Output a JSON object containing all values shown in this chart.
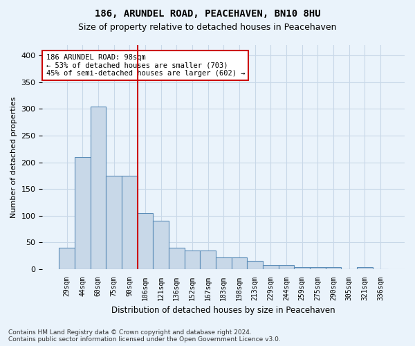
{
  "title": "186, ARUNDEL ROAD, PEACEHAVEN, BN10 8HU",
  "subtitle": "Size of property relative to detached houses in Peacehaven",
  "xlabel": "Distribution of detached houses by size in Peacehaven",
  "ylabel": "Number of detached properties",
  "bins": [
    "29sqm",
    "44sqm",
    "60sqm",
    "75sqm",
    "90sqm",
    "106sqm",
    "121sqm",
    "136sqm",
    "152sqm",
    "167sqm",
    "183sqm",
    "198sqm",
    "213sqm",
    "229sqm",
    "244sqm",
    "259sqm",
    "275sqm",
    "290sqm",
    "305sqm",
    "321sqm",
    "336sqm"
  ],
  "values": [
    40,
    210,
    305,
    175,
    175,
    105,
    90,
    40,
    35,
    35,
    22,
    22,
    15,
    8,
    8,
    4,
    3,
    3,
    0,
    3,
    0
  ],
  "bar_color": "#c8d8e8",
  "bar_edge_color": "#5b8db8",
  "vline_color": "#cc0000",
  "vline_x_index": 4.5,
  "annotation_line1": "186 ARUNDEL ROAD: 98sqm",
  "annotation_line2": "← 53% of detached houses are smaller (703)",
  "annotation_line3": "45% of semi-detached houses are larger (602) →",
  "annotation_box_color": "#ffffff",
  "annotation_box_edge_color": "#cc0000",
  "ylim": [
    0,
    420
  ],
  "yticks": [
    0,
    50,
    100,
    150,
    200,
    250,
    300,
    350,
    400
  ],
  "grid_color": "#c8d8e8",
  "footer_line1": "Contains HM Land Registry data © Crown copyright and database right 2024.",
  "footer_line2": "Contains public sector information licensed under the Open Government Licence v3.0.",
  "bg_color": "#eaf3fb",
  "plot_bg_color": "#eaf3fb",
  "title_fontsize": 10,
  "subtitle_fontsize": 9
}
